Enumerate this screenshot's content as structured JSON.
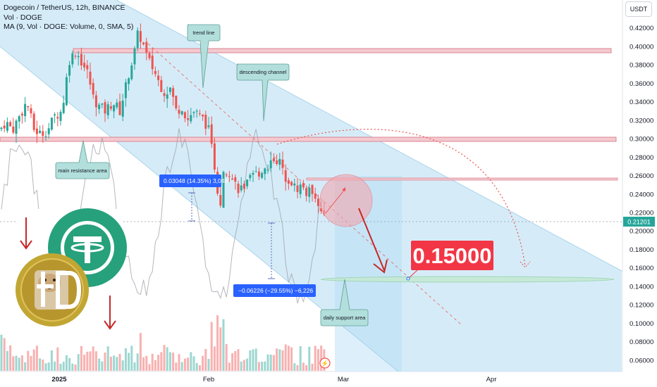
{
  "legend": {
    "title": "Dogecoin / TetherUS, 12h, BINANCE",
    "vol": "Vol · DOGE",
    "ma": "MA (9, Vol · DOGE: Volume, 0, SMA, 5)"
  },
  "unit": "USDT",
  "axis": {
    "y_ticks": [
      "0.42000",
      "0.40000",
      "0.38000",
      "0.36000",
      "0.34000",
      "0.32000",
      "0.30000",
      "0.28000",
      "0.26000",
      "0.24000",
      "0.22000",
      "0.20000",
      "0.18000",
      "0.16000",
      "0.14000",
      "0.12000",
      "0.10000",
      "0.08000",
      "0.06000"
    ],
    "x_ticks": [
      "2025",
      "Feb",
      "Mar",
      "Apr"
    ],
    "current_price": "0.21201"
  },
  "annotations": {
    "trend_line": "trend line",
    "descending_channel": "descending channel",
    "main_resistance": "main resistance area",
    "daily_support": "daily support area",
    "target": "0.15000",
    "measure_up": "0.03048 (14.35%) 3,048",
    "measure_down": "−0.06226 (−29.55%) −6,226"
  },
  "colors": {
    "up": "#26a69a",
    "down": "#ef5350",
    "target_bg": "#f23645",
    "measure_bg": "#2962ff",
    "channel": "#b3dcf2",
    "resistance": "#f2c6cc",
    "support": "#c6e9d6",
    "callout_bg": "#b2dfdb"
  },
  "chart_data": {
    "type": "candlestick",
    "symbol": "Dogecoin / TetherUS",
    "interval": "12h",
    "exchange": "BINANCE",
    "ylim": [
      0.05,
      0.435
    ],
    "y_scale": "linear",
    "x_ticks": [
      "2025",
      "Feb",
      "Mar",
      "Apr"
    ],
    "last_price": 0.21201,
    "target_price": 0.15,
    "resistance_levels": [
      0.4,
      0.303,
      0.258
    ],
    "support_level": 0.15,
    "anchor_closes": [
      [
        0,
        0.31
      ],
      [
        8,
        0.318
      ],
      [
        18,
        0.31
      ],
      [
        28,
        0.325
      ],
      [
        38,
        0.34
      ],
      [
        48,
        0.31
      ],
      [
        58,
        0.305
      ],
      [
        68,
        0.31
      ],
      [
        78,
        0.325
      ],
      [
        88,
        0.33
      ],
      [
        98,
        0.385
      ],
      [
        108,
        0.395
      ],
      [
        118,
        0.38
      ],
      [
        125,
        0.37
      ],
      [
        132,
        0.345
      ],
      [
        140,
        0.335
      ],
      [
        150,
        0.33
      ],
      [
        160,
        0.34
      ],
      [
        170,
        0.33
      ],
      [
        178,
        0.355
      ],
      [
        184,
        0.375
      ],
      [
        190,
        0.39
      ],
      [
        196,
        0.415
      ],
      [
        202,
        0.405
      ],
      [
        210,
        0.385
      ],
      [
        218,
        0.375
      ],
      [
        226,
        0.36
      ],
      [
        234,
        0.35
      ],
      [
        242,
        0.355
      ],
      [
        250,
        0.33
      ],
      [
        258,
        0.335
      ],
      [
        266,
        0.32
      ],
      [
        274,
        0.33
      ],
      [
        282,
        0.325
      ],
      [
        290,
        0.32
      ],
      [
        298,
        0.305
      ],
      [
        303,
        0.27
      ],
      [
        308,
        0.245
      ],
      [
        312,
        0.225
      ],
      [
        317,
        0.26
      ],
      [
        323,
        0.27
      ],
      [
        330,
        0.255
      ],
      [
        340,
        0.245
      ],
      [
        350,
        0.25
      ],
      [
        360,
        0.26
      ],
      [
        370,
        0.265
      ],
      [
        380,
        0.27
      ],
      [
        388,
        0.28
      ],
      [
        396,
        0.275
      ],
      [
        404,
        0.26
      ],
      [
        412,
        0.255
      ],
      [
        420,
        0.245
      ],
      [
        428,
        0.25
      ],
      [
        436,
        0.24
      ],
      [
        444,
        0.245
      ],
      [
        450,
        0.235
      ],
      [
        455,
        0.22
      ],
      [
        460,
        0.212
      ]
    ]
  }
}
